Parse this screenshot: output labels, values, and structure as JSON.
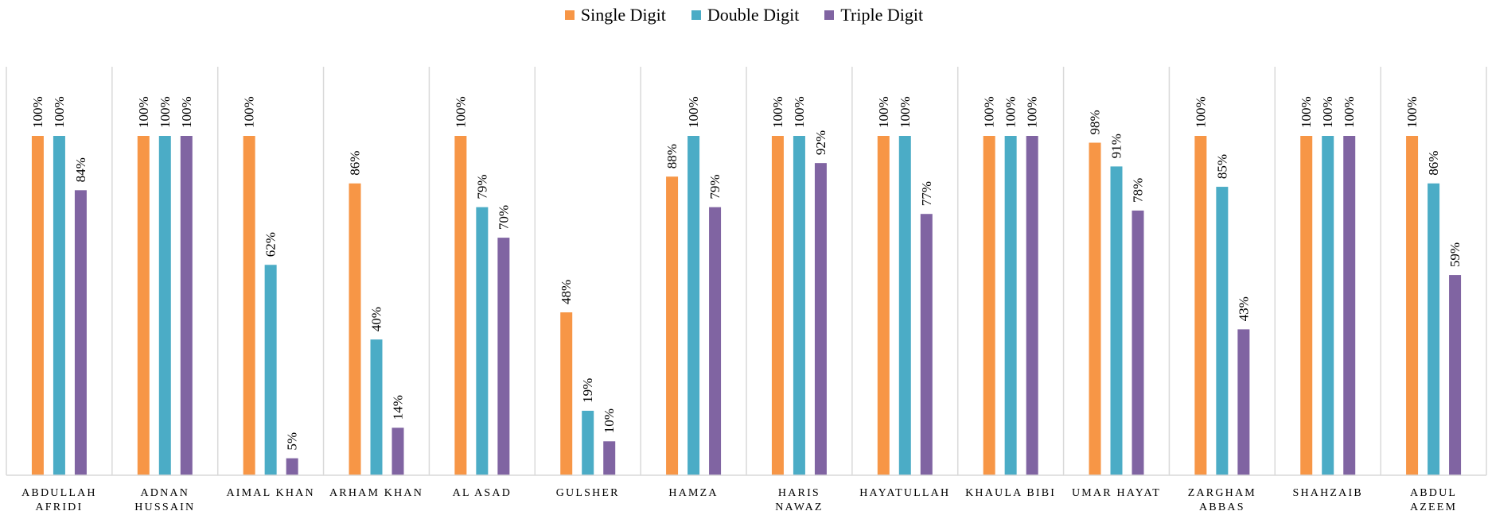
{
  "chart_data": {
    "type": "bar",
    "title": "",
    "xlabel": "",
    "ylabel": "",
    "ylim": [
      0,
      1.2
    ],
    "grid": false,
    "legend_position": "top-center",
    "categories": [
      [
        "ABDULLAH",
        "AFRIDI"
      ],
      [
        "ADNAN",
        "HUSSAIN"
      ],
      [
        "AIMAL KHAN"
      ],
      [
        "ARHAM KHAN"
      ],
      [
        "AL ASAD"
      ],
      [
        "GULSHER"
      ],
      [
        "HAMZA"
      ],
      [
        "HARIS",
        "NAWAZ"
      ],
      [
        "HAYATULLAH"
      ],
      [
        "KHAULA BIBI"
      ],
      [
        "UMAR HAYAT"
      ],
      [
        "ZARGHAM",
        "ABBAS"
      ],
      [
        "SHAHZAIB"
      ],
      [
        "ABDUL",
        "AZEEM"
      ]
    ],
    "series": [
      {
        "name": "Single Digit",
        "color": "#F79646",
        "values": [
          100,
          100,
          100,
          86,
          100,
          48,
          88,
          100,
          100,
          100,
          98,
          100,
          100,
          100
        ],
        "labels": [
          "100%",
          "100%",
          "100%",
          "86%",
          "100%",
          "48%",
          "88%",
          "100%",
          "100%",
          "100%",
          "98%",
          "100%",
          "100%",
          "100%"
        ]
      },
      {
        "name": "Double Digit",
        "color": "#4BACC6",
        "values": [
          100,
          100,
          62,
          40,
          79,
          19,
          100,
          100,
          100,
          100,
          91,
          85,
          100,
          86
        ],
        "labels": [
          "100%",
          "100%",
          "62%",
          "40%",
          "79%",
          "19%",
          "100%",
          "100%",
          "100%",
          "100%",
          "91%",
          "85%",
          "100%",
          "86%"
        ]
      },
      {
        "name": "Triple Digit",
        "color": "#8064A2",
        "values": [
          84,
          100,
          5,
          14,
          70,
          10,
          79,
          92,
          77,
          100,
          78,
          43,
          100,
          59
        ],
        "labels": [
          "84%",
          "100%",
          "5%",
          "14%",
          "70%",
          "10%",
          "79%",
          "92%",
          "77%",
          "100%",
          "78%",
          "43%",
          "100%",
          "59%"
        ]
      }
    ]
  }
}
